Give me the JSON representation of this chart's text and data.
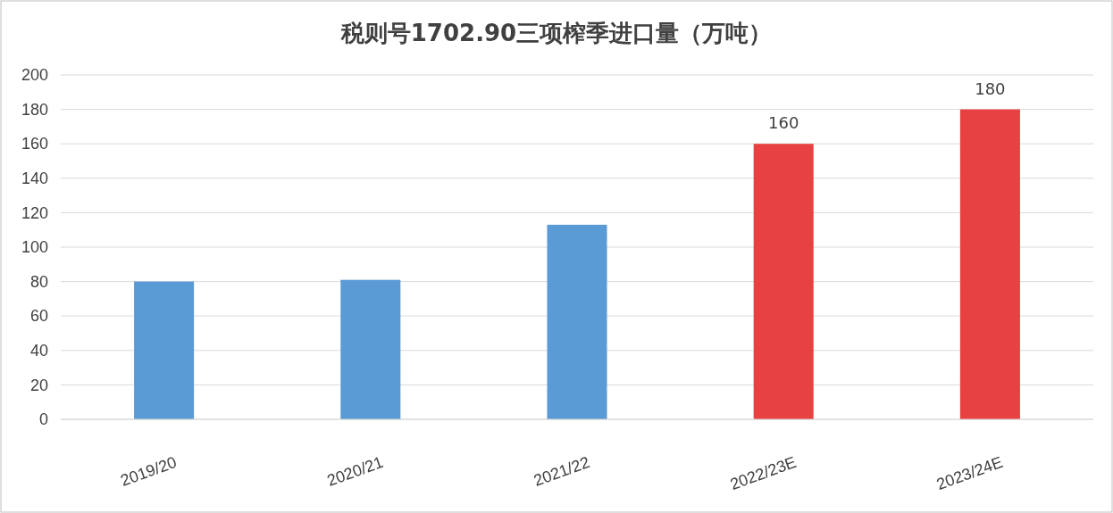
{
  "chart_data": {
    "type": "bar",
    "title": "税则号1702.90三项榨季进口量（万吨）",
    "categories": [
      "2019/20",
      "2020/21",
      "2021/22",
      "2022/23E",
      "2023/24E"
    ],
    "values": [
      80,
      81,
      113,
      160,
      180
    ],
    "colors": [
      "#5b9bd5",
      "#5b9bd5",
      "#5b9bd5",
      "#e84141",
      "#e84141"
    ],
    "value_labels": [
      null,
      null,
      null,
      "160",
      "180"
    ],
    "ylim": [
      0,
      200
    ],
    "yticks": [
      0,
      20,
      40,
      60,
      80,
      100,
      120,
      140,
      160,
      180,
      200
    ],
    "grid": "y"
  }
}
